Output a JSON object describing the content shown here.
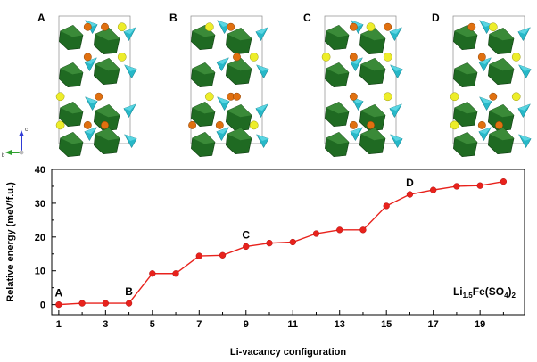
{
  "panels": [
    {
      "label": "A",
      "yellow": [
        [
          0.82,
          0.08
        ],
        [
          0.82,
          0.3
        ],
        [
          0.1,
          0.59
        ],
        [
          0.1,
          0.8
        ]
      ],
      "orange": [
        [
          0.42,
          0.08
        ],
        [
          0.62,
          0.08
        ],
        [
          0.42,
          0.3
        ],
        [
          0.55,
          0.59
        ],
        [
          0.42,
          0.8
        ],
        [
          0.62,
          0.8
        ]
      ]
    },
    {
      "label": "B",
      "yellow": [
        [
          0.3,
          0.08
        ],
        [
          0.82,
          0.3
        ],
        [
          0.3,
          0.59
        ],
        [
          0.82,
          0.8
        ]
      ],
      "orange": [
        [
          0.55,
          0.08
        ],
        [
          0.62,
          0.3
        ],
        [
          0.55,
          0.59
        ],
        [
          0.1,
          0.8
        ],
        [
          0.42,
          0.8
        ],
        [
          0.62,
          0.59
        ]
      ]
    },
    {
      "label": "C",
      "yellow": [
        [
          0.62,
          0.08
        ],
        [
          0.82,
          0.3
        ],
        [
          0.1,
          0.3
        ],
        [
          0.82,
          0.59
        ]
      ],
      "orange": [
        [
          0.42,
          0.08
        ],
        [
          0.82,
          0.08
        ],
        [
          0.42,
          0.3
        ],
        [
          0.42,
          0.59
        ],
        [
          0.42,
          0.8
        ],
        [
          0.62,
          0.8
        ]
      ]
    },
    {
      "label": "D",
      "yellow": [
        [
          0.55,
          0.08
        ],
        [
          0.82,
          0.3
        ],
        [
          0.1,
          0.59
        ],
        [
          0.1,
          0.8
        ],
        [
          0.82,
          0.59
        ]
      ],
      "orange": [
        [
          0.3,
          0.08
        ],
        [
          0.42,
          0.3
        ],
        [
          0.55,
          0.59
        ],
        [
          0.42,
          0.8
        ],
        [
          0.62,
          0.8
        ]
      ]
    }
  ],
  "axes_glyph": {
    "vertical": "c",
    "horizontal": "b",
    "vertical_color": "#2f3bd6",
    "horizontal_color": "#2fa12f"
  },
  "colors": {
    "series": "#e8221c",
    "octahedron": "#1f6a22",
    "tetrahedron": "#27b8c8",
    "li": "#eded2a",
    "fe": "#e07010"
  },
  "chart_data": {
    "type": "line",
    "x": [
      1,
      2,
      3,
      4,
      5,
      6,
      7,
      8,
      9,
      10,
      11,
      12,
      13,
      14,
      15,
      16,
      17,
      18,
      19,
      20
    ],
    "series": [
      {
        "values": [
          0.0,
          0.4,
          0.4,
          0.4,
          9.2,
          9.2,
          14.4,
          14.6,
          17.2,
          18.2,
          18.5,
          21.0,
          22.1,
          22.1,
          29.2,
          32.6,
          33.9,
          35.0,
          35.2,
          36.4
        ]
      }
    ],
    "xlabel": "Li-vacancy configuration",
    "ylabel": "Relative energy (meV/f.u.)",
    "xlim": [
      0.7,
      20.9
    ],
    "ylim": [
      -3,
      40
    ],
    "xticks": [
      1,
      3,
      5,
      7,
      9,
      11,
      13,
      15,
      17,
      19
    ],
    "yticks": [
      0,
      10,
      20,
      30,
      40
    ],
    "point_labels": [
      {
        "text": "A",
        "x": 1
      },
      {
        "text": "B",
        "x": 4
      },
      {
        "text": "C",
        "x": 9
      },
      {
        "text": "D",
        "x": 16
      }
    ],
    "annotation": {
      "main": "Li",
      "sub1": "1.5",
      "mid": "Fe(SO",
      "sub2": "4",
      "close": ")",
      "sub3": "2"
    },
    "grid": false,
    "legend": "none"
  }
}
